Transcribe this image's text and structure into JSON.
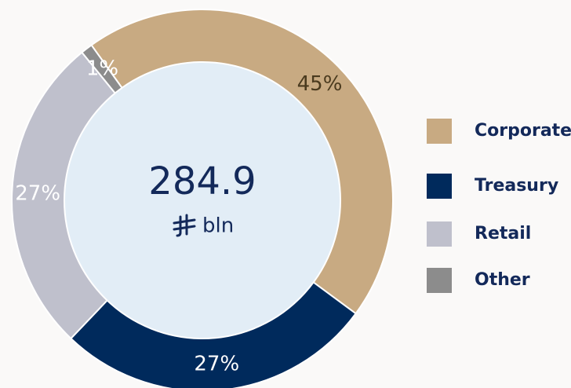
{
  "chart_data": {
    "type": "donut",
    "categories": [
      "Corporate",
      "Treasury",
      "Retail",
      "Other"
    ],
    "series": [
      {
        "values": [
          45,
          27,
          27,
          1
        ],
        "value_labels": [
          "45%",
          "27%",
          "27%",
          "1%"
        ],
        "colors": [
          "#c8aa82",
          "#002a5c",
          "#bfc0cc",
          "#8c8c8c"
        ]
      }
    ],
    "center_value": "284.9",
    "center_unit": "bln",
    "legend": "right"
  }
}
